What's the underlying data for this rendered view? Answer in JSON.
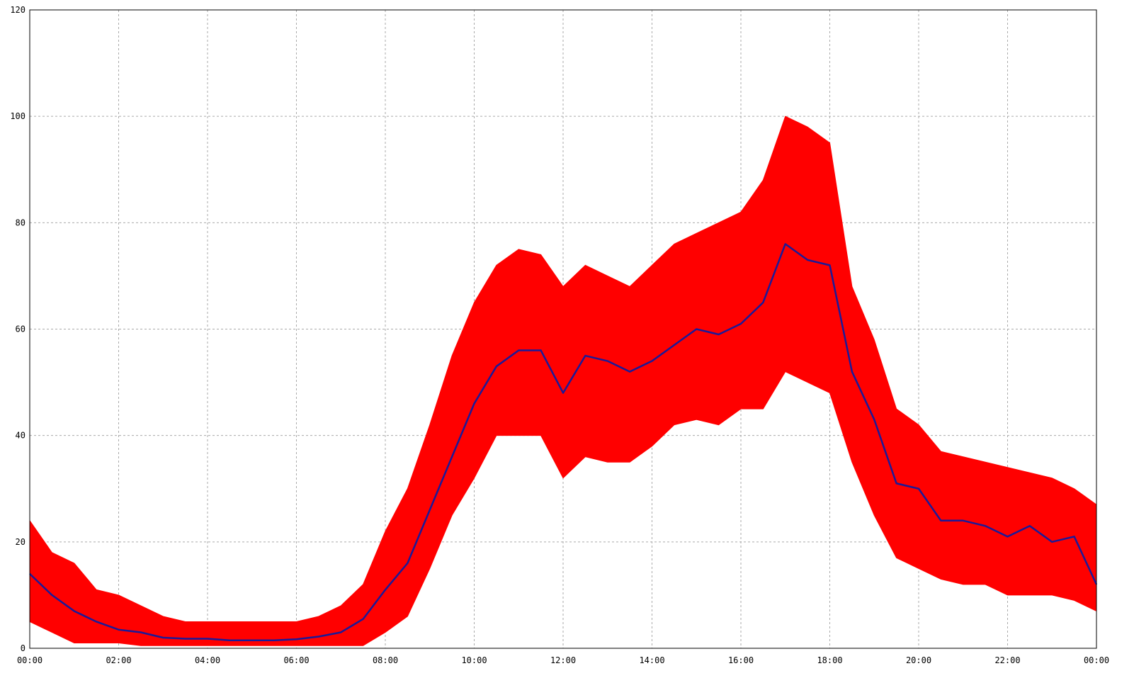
{
  "chart_data": {
    "type": "line",
    "x": [
      0,
      0.5,
      1,
      1.5,
      2,
      2.5,
      3,
      3.5,
      4,
      4.5,
      5,
      5.5,
      6,
      6.5,
      7,
      7.5,
      8,
      8.5,
      9,
      9.5,
      10,
      10.5,
      11,
      11.5,
      12,
      12.5,
      13,
      13.5,
      14,
      14.5,
      15,
      15.5,
      16,
      16.5,
      17,
      17.5,
      18,
      18.5,
      19,
      19.5,
      20,
      20.5,
      21,
      21.5,
      22,
      22.5,
      23,
      23.5,
      24
    ],
    "series": [
      {
        "color": "#ff0000",
        "low": [
          5,
          3,
          1,
          1,
          1,
          0.5,
          0.5,
          0.5,
          0.5,
          0.5,
          0.5,
          0.5,
          0.5,
          0.5,
          0.5,
          0.5,
          3,
          6,
          15,
          25,
          32,
          40,
          40,
          40,
          32,
          36,
          35,
          35,
          38,
          42,
          43,
          42,
          45,
          45,
          52,
          50,
          48,
          35,
          25,
          17,
          15,
          13,
          12,
          12,
          10,
          10,
          10,
          9,
          7
        ],
        "high": [
          24,
          18,
          16,
          11,
          10,
          8,
          6,
          5,
          5,
          5,
          5,
          5,
          5,
          6,
          8,
          12,
          22,
          30,
          42,
          55,
          65,
          72,
          75,
          74,
          68,
          72,
          70,
          68,
          72,
          76,
          78,
          80,
          82,
          88,
          100,
          98,
          95,
          68,
          58,
          45,
          42,
          37,
          36,
          35,
          34,
          33,
          32,
          30,
          27
        ]
      },
      {
        "color": "#1a1a99",
        "values": [
          14,
          10,
          7,
          5,
          3.5,
          3,
          2,
          1.8,
          1.8,
          1.5,
          1.5,
          1.5,
          1.7,
          2.2,
          3,
          5.5,
          11,
          16,
          26,
          36,
          46,
          53,
          56,
          56,
          48,
          55,
          54,
          52,
          54,
          57,
          60,
          59,
          61,
          65,
          76,
          73,
          72,
          52,
          43,
          31,
          30,
          24,
          24,
          23,
          21,
          23,
          20,
          21,
          12
        ]
      }
    ],
    "xlim": [
      0,
      24
    ],
    "xticks": [
      {
        "value": 0,
        "label": "00:00"
      },
      {
        "value": 2,
        "label": "02:00"
      },
      {
        "value": 4,
        "label": "04:00"
      },
      {
        "value": 6,
        "label": "06:00"
      },
      {
        "value": 8,
        "label": "08:00"
      },
      {
        "value": 10,
        "label": "10:00"
      },
      {
        "value": 12,
        "label": "12:00"
      },
      {
        "value": 14,
        "label": "14:00"
      },
      {
        "value": 16,
        "label": "16:00"
      },
      {
        "value": 18,
        "label": "18:00"
      },
      {
        "value": 20,
        "label": "20:00"
      },
      {
        "value": 22,
        "label": "22:00"
      },
      {
        "value": 24,
        "label": "00:00"
      }
    ],
    "ylim": [
      0,
      120
    ],
    "yticks": [
      0,
      20,
      40,
      60,
      80,
      100,
      120
    ],
    "grid": true
  }
}
